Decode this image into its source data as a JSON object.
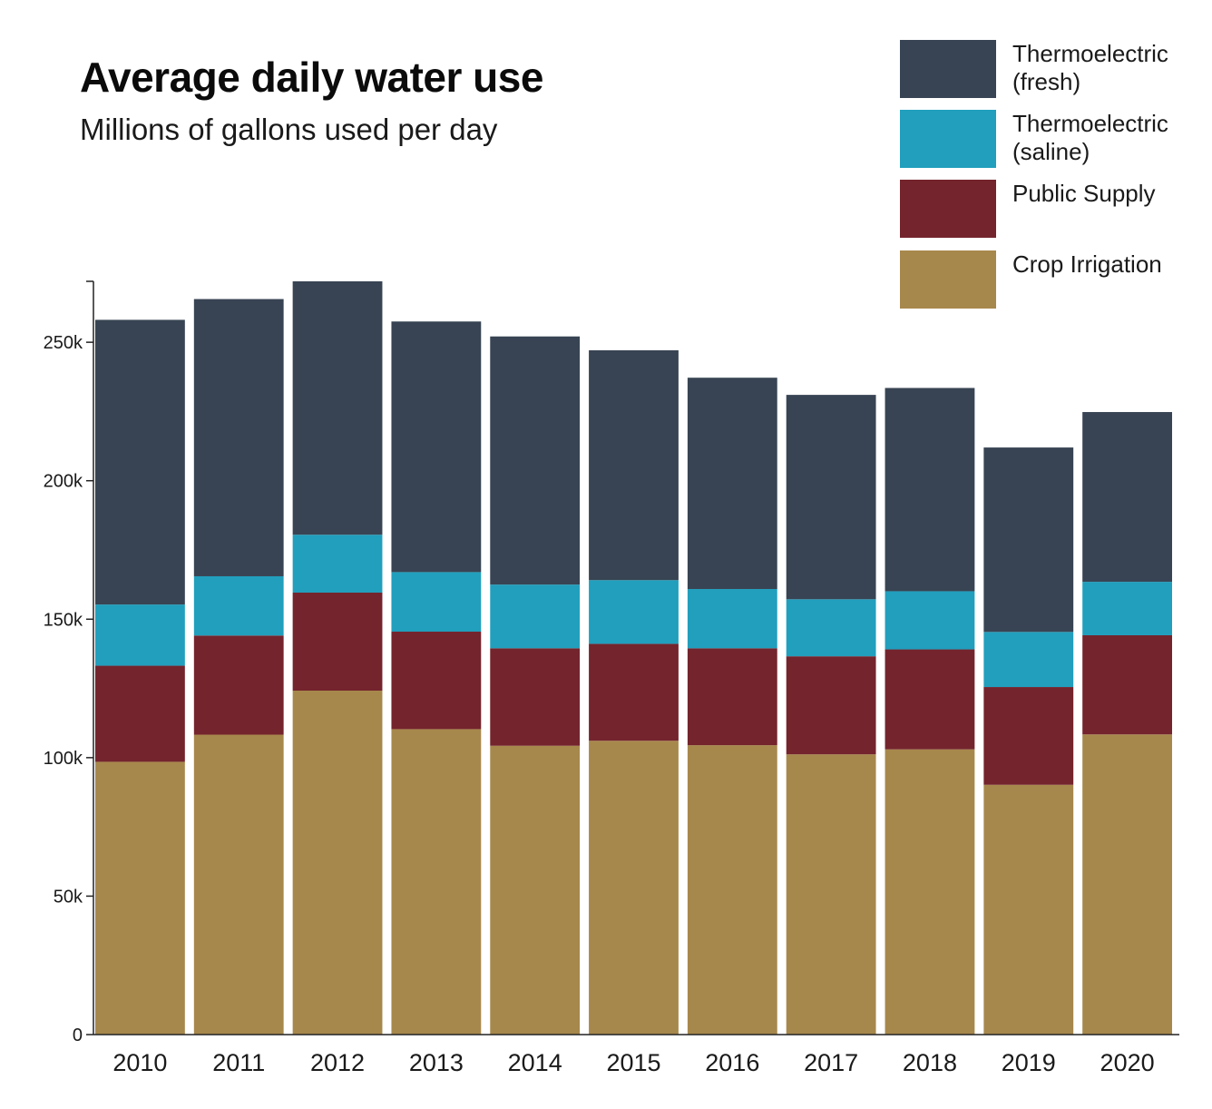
{
  "title": "Average daily water use",
  "subtitle": "Millions of gallons used per day",
  "colors": {
    "thermo_fresh": "#384453",
    "thermo_saline": "#219fbd",
    "public_supply": "#74242d",
    "crop_irrigation": "#a7884c",
    "axis": "#222222"
  },
  "legend": [
    {
      "label": "Thermoelectric (fresh)",
      "color": "#384453"
    },
    {
      "label": "Thermoelectric (saline)",
      "color": "#219fbd"
    },
    {
      "label": "Public Supply",
      "color": "#74242d"
    },
    {
      "label": "Crop Irrigation",
      "color": "#a7884c"
    }
  ],
  "chart_data": {
    "type": "bar",
    "stacked": true,
    "title": "Average daily water use",
    "subtitle": "Millions of gallons used per day",
    "xlabel": "",
    "ylabel": "",
    "categories": [
      "2010",
      "2011",
      "2012",
      "2013",
      "2014",
      "2015",
      "2016",
      "2017",
      "2018",
      "2019",
      "2020"
    ],
    "ylim": [
      0,
      272000
    ],
    "yticks": [
      0,
      50000,
      100000,
      150000,
      200000,
      250000
    ],
    "ytick_labels": [
      "0",
      "50k",
      "100k",
      "150k",
      "200k",
      "250k"
    ],
    "series": [
      {
        "name": "Crop Irrigation",
        "color": "#a7884c",
        "values": [
          98500,
          108300,
          124200,
          110300,
          104300,
          106100,
          104500,
          101200,
          103000,
          90200,
          108400
        ]
      },
      {
        "name": "Public Supply",
        "color": "#74242d",
        "values": [
          34700,
          35800,
          35400,
          35200,
          35200,
          35000,
          35000,
          35400,
          36100,
          35300,
          35800
        ]
      },
      {
        "name": "Thermoelectric (saline)",
        "color": "#219fbd",
        "values": [
          22100,
          21400,
          20900,
          21500,
          23000,
          23000,
          21400,
          20600,
          21000,
          19900,
          19300
        ]
      },
      {
        "name": "Thermoelectric (fresh)",
        "color": "#384453",
        "values": [
          102800,
          100100,
          91500,
          90500,
          89600,
          83000,
          76300,
          73800,
          73400,
          66600,
          61300
        ]
      }
    ],
    "legend_position": "top-right",
    "grid": false
  }
}
